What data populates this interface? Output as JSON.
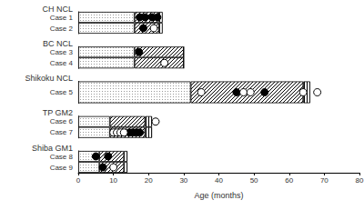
{
  "chart_data": {
    "type": "bar",
    "orientation": "horizontal",
    "stacked": true,
    "xlabel": "Age (months)",
    "xlim": [
      0,
      80
    ],
    "xticks": [
      0,
      10,
      20,
      30,
      40,
      50,
      60,
      70,
      80
    ],
    "groups": [
      {
        "name": "CH NCL",
        "categories": [
          "Case 1",
          "Case 2"
        ],
        "series": [
          {
            "color": "#999999",
            "values": [
              16,
              16
            ]
          },
          {
            "color": "#000000",
            "values": [
              7,
              7
            ]
          },
          {
            "color": "#000000",
            "values": [
              1,
              1
            ]
          },
          {
            "type": "scatter",
            "marker": "circle",
            "color": "#000000",
            "values": [
              [
                17.5,
                19,
                21,
                22.5
              ],
              [
                18.5
              ]
            ]
          },
          {
            "type": "scatter",
            "marker": "circle",
            "color": "#ffffff",
            "values": [
              [],
              [
                21.5
              ]
            ]
          }
        ]
      },
      {
        "name": "BC NCL",
        "categories": [
          "Case 3",
          "Case 4"
        ],
        "series": [
          {
            "color": "#999999",
            "values": [
              16,
              16
            ]
          },
          {
            "color": "#000000",
            "values": [
              14,
              14
            ]
          },
          {
            "color": "#000000",
            "values": [
              0,
              0
            ]
          },
          {
            "type": "scatter",
            "marker": "circle",
            "color": "#000000",
            "values": [
              [
                17.3
              ],
              []
            ]
          },
          {
            "type": "scatter",
            "marker": "circle",
            "color": "#ffffff",
            "values": [
              [],
              [
                24.5
              ]
            ]
          }
        ]
      },
      {
        "name": "Shikoku NCL",
        "categories": [
          "Case 5"
        ],
        "series": [
          {
            "color": "#999999",
            "values": [
              32
            ]
          },
          {
            "color": "#000000",
            "values": [
              32
            ]
          },
          {
            "color": "#000000",
            "values": [
              2
            ]
          },
          {
            "type": "scatter",
            "marker": "circle",
            "color": "#000000",
            "values": [
              [
                45,
                53
              ]
            ]
          },
          {
            "type": "scatter",
            "marker": "circle",
            "color": "#ffffff",
            "values": [
              [
                35,
                47,
                49,
                64,
                68
              ]
            ]
          }
        ]
      },
      {
        "name": "TP GM2",
        "categories": [
          "Case 6",
          "Case 7"
        ],
        "series": [
          {
            "color": "#999999",
            "values": [
              9,
              9
            ]
          },
          {
            "color": "#000000",
            "values": [
              10,
              10
            ]
          },
          {
            "color": "#000000",
            "values": [
              2,
              2
            ]
          },
          {
            "type": "scatter",
            "marker": "circle",
            "color": "#000000",
            "values": [
              [],
              [
                14.5,
                15.5,
                16.5,
                17.5
              ]
            ]
          },
          {
            "type": "scatter",
            "marker": "circle",
            "color": "#ffffff",
            "values": [
              [
                22
              ],
              [
                10,
                11,
                12,
                13
              ]
            ]
          }
        ]
      },
      {
        "name": "Shiba GM1",
        "categories": [
          "Case 8",
          "Case 9"
        ],
        "series": [
          {
            "color": "#999999",
            "values": [
              6,
              6
            ]
          },
          {
            "color": "#000000",
            "values": [
              7,
              7
            ]
          },
          {
            "color": "#000000",
            "values": [
              1,
              1
            ]
          },
          {
            "type": "scatter",
            "marker": "circle",
            "color": "#000000",
            "values": [
              [
                5,
                8.5
              ],
              [
                7
              ]
            ]
          },
          {
            "type": "scatter",
            "marker": "circle",
            "color": "#ffffff",
            "values": [
              [],
              [
                10
              ]
            ]
          }
        ]
      }
    ]
  }
}
